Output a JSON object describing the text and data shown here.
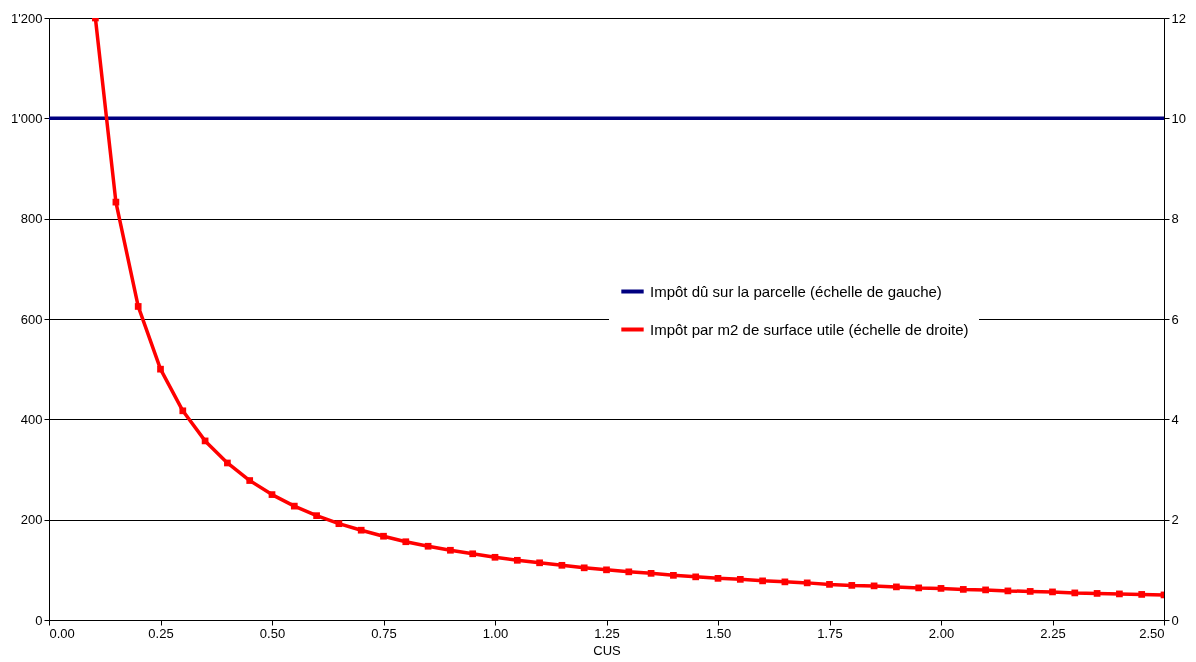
{
  "chart_data": {
    "type": "line",
    "xlabel": "CUS",
    "xlim": [
      0,
      2.5
    ],
    "xticks": [
      {
        "value": 0,
        "label": "0.00"
      },
      {
        "value": 0.25,
        "label": "0.25"
      },
      {
        "value": 0.5,
        "label": "0.50"
      },
      {
        "value": 0.75,
        "label": "0.75"
      },
      {
        "value": 1,
        "label": "1.00"
      },
      {
        "value": 1.25,
        "label": "1.25"
      },
      {
        "value": 1.5,
        "label": "1.50"
      },
      {
        "value": 1.75,
        "label": "1.75"
      },
      {
        "value": 2,
        "label": "2.00"
      },
      {
        "value": 2.25,
        "label": "2.25"
      },
      {
        "value": 2.5,
        "label": "2.50"
      }
    ],
    "ylim": [
      0,
      1200
    ],
    "yticks": [
      0,
      200,
      400,
      600,
      800,
      {
        "value": 1000,
        "label": "1'000"
      },
      {
        "value": 1200,
        "label": "1'200"
      }
    ],
    "y2lim": [
      0,
      12
    ],
    "y2ticks": [
      0,
      2,
      4,
      6,
      8,
      10,
      12
    ],
    "grid": "y",
    "legend": "right",
    "line_style": "solid",
    "series": [
      {
        "name": "Impôt dû sur la parcelle (échelle de gauche)",
        "color": "#000080",
        "marker": "none",
        "x": [
          0,
          2.5
        ],
        "values": [
          1000,
          1000
        ]
      },
      {
        "name": "Impôt par m2 de surface utile (échelle de droite)",
        "color": "#ff0000",
        "marker": "square",
        "axis": "y2",
        "x": [
          0.104,
          0.15,
          0.2,
          0.25,
          0.3,
          0.35,
          0.4,
          0.45,
          0.5,
          0.55,
          0.6,
          0.65,
          0.7,
          0.75,
          0.8,
          0.85,
          0.9,
          0.95,
          1.0,
          1.05,
          1.1,
          1.15,
          1.2,
          1.25,
          1.3,
          1.35,
          1.4,
          1.45,
          1.5,
          1.55,
          1.6,
          1.65,
          1.7,
          1.75,
          1.8,
          1.85,
          1.9,
          1.95,
          2.0,
          2.05,
          2.1,
          2.15,
          2.2,
          2.25,
          2.3,
          2.35,
          2.4,
          2.45,
          2.5
        ],
        "values": [
          12,
          8.33,
          6.25,
          5,
          4.17,
          3.57,
          3.13,
          2.78,
          2.5,
          2.27,
          2.08,
          1.92,
          1.79,
          1.67,
          1.56,
          1.47,
          1.39,
          1.32,
          1.25,
          1.19,
          1.14,
          1.09,
          1.04,
          1.0,
          0.96,
          0.93,
          0.89,
          0.86,
          0.83,
          0.81,
          0.78,
          0.76,
          0.74,
          0.71,
          0.69,
          0.68,
          0.66,
          0.64,
          0.63,
          0.61,
          0.6,
          0.58,
          0.57,
          0.56,
          0.54,
          0.53,
          0.52,
          0.51,
          0.5
        ]
      }
    ]
  }
}
